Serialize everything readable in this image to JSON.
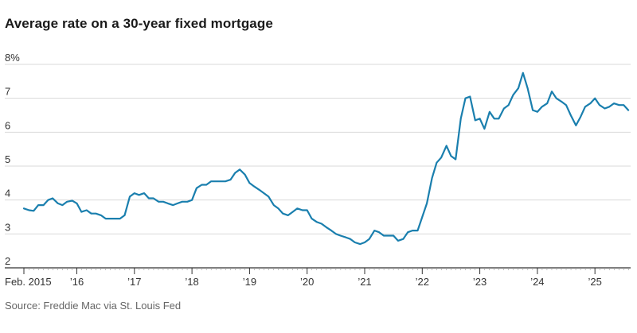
{
  "title": "Average rate on a 30-year fixed mortgage",
  "source": "Source: Freddie Mac via St. Louis Fed",
  "colors": {
    "line": "#1a7fae",
    "grid": "#d9d9d9",
    "axis": "#333333"
  },
  "chart_data": {
    "type": "line",
    "title": "Average rate on a 30-year fixed mortgage",
    "xlabel": "",
    "ylabel": "",
    "ylim": [
      2,
      8
    ],
    "xlim": [
      "2015-02",
      "2025-08"
    ],
    "y_ticks": [
      {
        "value": 8,
        "label": "8%"
      },
      {
        "value": 7,
        "label": "7"
      },
      {
        "value": 6,
        "label": "6"
      },
      {
        "value": 5,
        "label": "5"
      },
      {
        "value": 4,
        "label": "4"
      },
      {
        "value": 3,
        "label": "3"
      },
      {
        "value": 2,
        "label": "2"
      }
    ],
    "x_ticks": [
      {
        "value": 2015.08,
        "label": "Feb. 2015"
      },
      {
        "value": 2016.0,
        "label": "’16"
      },
      {
        "value": 2017.0,
        "label": "’17"
      },
      {
        "value": 2018.0,
        "label": "’18"
      },
      {
        "value": 2019.0,
        "label": "’19"
      },
      {
        "value": 2020.0,
        "label": "’20"
      },
      {
        "value": 2021.0,
        "label": "’21"
      },
      {
        "value": 2022.0,
        "label": "’22"
      },
      {
        "value": 2023.0,
        "label": "’23"
      },
      {
        "value": 2024.0,
        "label": "’24"
      },
      {
        "value": 2025.0,
        "label": "’25"
      }
    ],
    "grid": true,
    "series": [
      {
        "name": "",
        "x": [
          2015.08,
          2015.17,
          2015.25,
          2015.33,
          2015.42,
          2015.5,
          2015.58,
          2015.67,
          2015.75,
          2015.83,
          2015.92,
          2016.0,
          2016.08,
          2016.17,
          2016.25,
          2016.33,
          2016.42,
          2016.5,
          2016.58,
          2016.67,
          2016.75,
          2016.83,
          2016.92,
          2017.0,
          2017.08,
          2017.17,
          2017.25,
          2017.33,
          2017.42,
          2017.5,
          2017.58,
          2017.67,
          2017.75,
          2017.83,
          2017.92,
          2018.0,
          2018.08,
          2018.17,
          2018.25,
          2018.33,
          2018.42,
          2018.5,
          2018.58,
          2018.67,
          2018.75,
          2018.83,
          2018.92,
          2019.0,
          2019.08,
          2019.17,
          2019.25,
          2019.33,
          2019.42,
          2019.5,
          2019.58,
          2019.67,
          2019.75,
          2019.83,
          2019.92,
          2020.0,
          2020.08,
          2020.17,
          2020.25,
          2020.33,
          2020.42,
          2020.5,
          2020.58,
          2020.67,
          2020.75,
          2020.83,
          2020.92,
          2021.0,
          2021.08,
          2021.17,
          2021.25,
          2021.33,
          2021.42,
          2021.5,
          2021.58,
          2021.67,
          2021.75,
          2021.83,
          2021.92,
          2022.0,
          2022.08,
          2022.17,
          2022.25,
          2022.33,
          2022.42,
          2022.5,
          2022.58,
          2022.67,
          2022.75,
          2022.83,
          2022.92,
          2023.0,
          2023.08,
          2023.17,
          2023.25,
          2023.33,
          2023.42,
          2023.5,
          2023.58,
          2023.67,
          2023.75,
          2023.83,
          2023.92,
          2024.0,
          2024.08,
          2024.17,
          2024.25,
          2024.33,
          2024.42,
          2024.5,
          2024.58,
          2024.67,
          2024.75,
          2024.83,
          2024.92,
          2025.0,
          2025.08,
          2025.17,
          2025.25,
          2025.33,
          2025.42,
          2025.5,
          2025.58
        ],
        "y": [
          3.75,
          3.7,
          3.68,
          3.85,
          3.85,
          4.0,
          4.05,
          3.9,
          3.85,
          3.95,
          3.98,
          3.9,
          3.65,
          3.7,
          3.6,
          3.6,
          3.55,
          3.45,
          3.45,
          3.45,
          3.45,
          3.55,
          4.1,
          4.2,
          4.15,
          4.2,
          4.05,
          4.05,
          3.95,
          3.95,
          3.9,
          3.85,
          3.9,
          3.95,
          3.95,
          4.0,
          4.35,
          4.45,
          4.45,
          4.55,
          4.55,
          4.55,
          4.55,
          4.6,
          4.8,
          4.9,
          4.75,
          4.5,
          4.4,
          4.3,
          4.2,
          4.1,
          3.85,
          3.75,
          3.6,
          3.55,
          3.65,
          3.75,
          3.7,
          3.7,
          3.45,
          3.35,
          3.3,
          3.2,
          3.1,
          3.0,
          2.95,
          2.9,
          2.85,
          2.75,
          2.7,
          2.75,
          2.85,
          3.1,
          3.05,
          2.95,
          2.95,
          2.95,
          2.8,
          2.85,
          3.05,
          3.1,
          3.1,
          3.5,
          3.9,
          4.65,
          5.1,
          5.25,
          5.6,
          5.3,
          5.2,
          6.4,
          7.0,
          7.05,
          6.35,
          6.4,
          6.1,
          6.6,
          6.4,
          6.4,
          6.7,
          6.8,
          7.1,
          7.3,
          7.75,
          7.3,
          6.65,
          6.6,
          6.75,
          6.85,
          7.2,
          7.0,
          6.9,
          6.8,
          6.5,
          6.2,
          6.45,
          6.75,
          6.85,
          7.0,
          6.8,
          6.7,
          6.75,
          6.85,
          6.8,
          6.8,
          6.65
        ]
      }
    ]
  }
}
